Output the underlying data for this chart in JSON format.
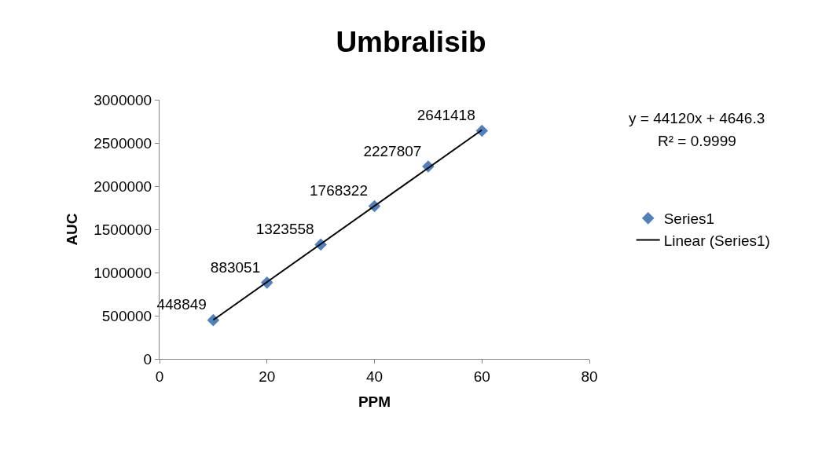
{
  "chart_data": {
    "type": "scatter",
    "title": "Umbralisib",
    "xlabel": "PPM",
    "ylabel": "AUC",
    "x": [
      10,
      20,
      30,
      40,
      50,
      60
    ],
    "series": [
      {
        "name": "Series1",
        "color": "#4f81bd",
        "marker": "diamond",
        "values": [
          448849,
          883051,
          1323558,
          1768322,
          2227807,
          2641418
        ],
        "value_labels": [
          "448849",
          "883051",
          "1323558",
          "1768322",
          "2227807",
          "2641418"
        ]
      },
      {
        "name": "Linear (Series1)",
        "type": "line",
        "color": "#000000",
        "marker": "none",
        "line_style": "solid",
        "x": [
          10,
          60
        ],
        "values": [
          450000,
          2650000
        ]
      }
    ],
    "annotations": [
      "y = 44120x + 4646.3",
      "R² = 0.9999"
    ],
    "xlim": [
      0,
      80
    ],
    "xticks": [
      0,
      20,
      40,
      60,
      80
    ],
    "ylim": [
      0,
      3000000
    ],
    "yticks": [
      0,
      500000,
      1000000,
      1500000,
      2000000,
      2500000,
      3000000
    ],
    "grid": false,
    "legend": "right"
  }
}
